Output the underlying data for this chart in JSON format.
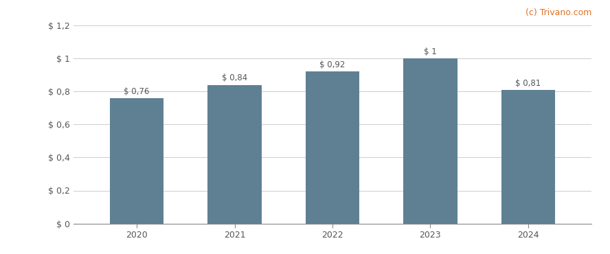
{
  "categories": [
    "2020",
    "2021",
    "2022",
    "2023",
    "2024"
  ],
  "values": [
    0.76,
    0.84,
    0.92,
    1.0,
    0.81
  ],
  "bar_labels": [
    "$ 0,76",
    "$ 0,84",
    "$ 0,92",
    "$ 1",
    "$ 0,81"
  ],
  "bar_color": "#5f7f93",
  "background_color": "#ffffff",
  "ylim": [
    0,
    1.2
  ],
  "yticks": [
    0,
    0.2,
    0.4,
    0.6,
    0.8,
    1.0,
    1.2
  ],
  "ytick_labels": [
    "$ 0",
    "$ 0,2",
    "$ 0,4",
    "$ 0,6",
    "$ 0,8",
    "$ 1",
    "$ 1,2"
  ],
  "grid_color": "#cccccc",
  "watermark": "(c) Trivano.com",
  "watermark_color": "#e07020",
  "label_fontsize": 8.5,
  "tick_fontsize": 9,
  "watermark_fontsize": 9,
  "bar_width": 0.55
}
